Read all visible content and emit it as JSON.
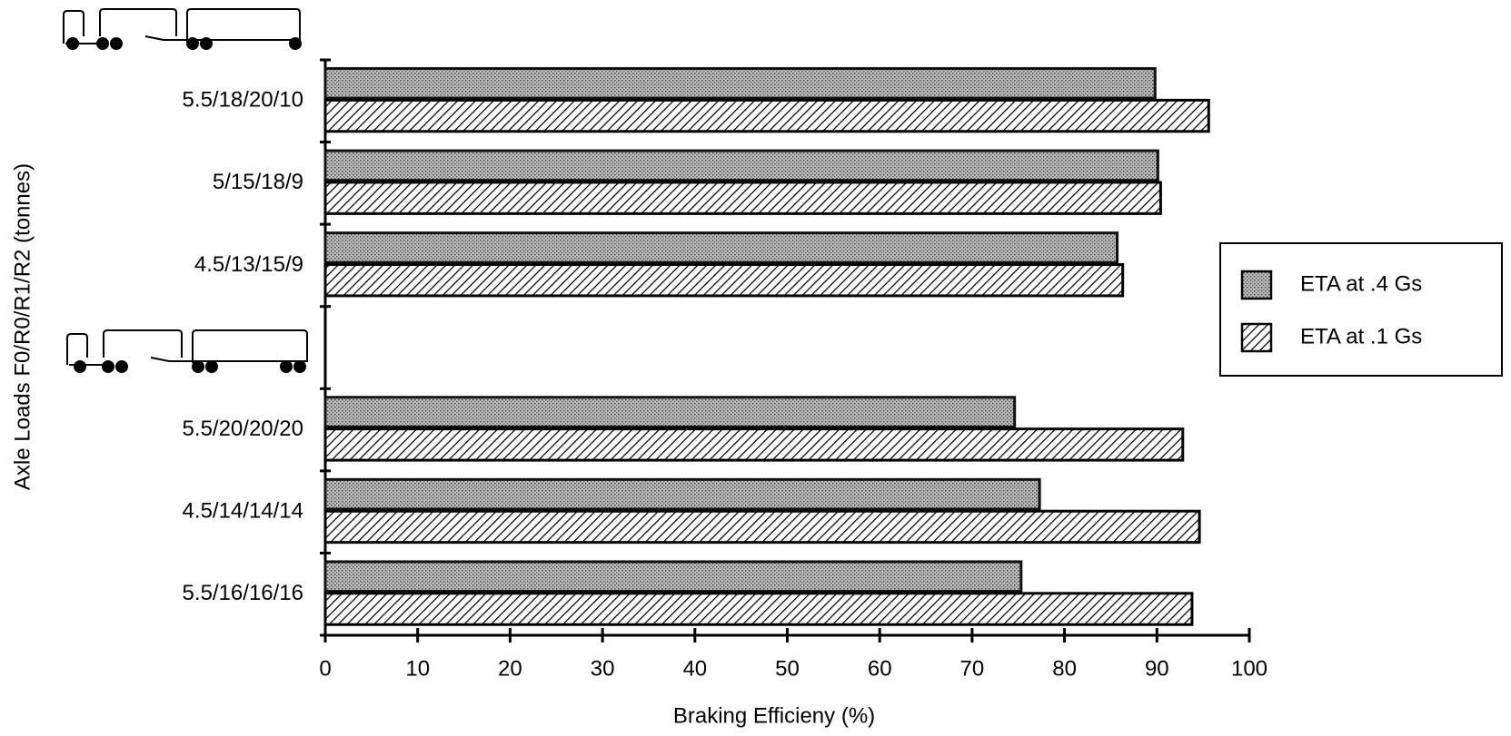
{
  "chart_data": {
    "type": "hbar",
    "xlabel": "Braking Efficieny (%)",
    "ylabel": "Axle Loads F0/R0/R1/R2 (tonnes)",
    "categories": [
      "5.5/18/20/10",
      "5/15/18/9",
      "4.5/13/15/9",
      null,
      "5.5/20/20/20",
      "4.5/14/14/14",
      "5.5/16/16/16"
    ],
    "series": [
      {
        "name": "ETA at .4 Gs",
        "color": "#555555",
        "pattern": "dots",
        "values": [
          89.8,
          90.1,
          85.7,
          null,
          74.6,
          77.3,
          75.3
        ]
      },
      {
        "name": "ETA at .1 Gs",
        "color": "#000000",
        "pattern": "hatch",
        "values": [
          95.6,
          90.4,
          86.3,
          null,
          92.8,
          94.6,
          93.8
        ]
      }
    ],
    "xlim": [
      0,
      100
    ],
    "xticks": [
      0,
      10,
      20,
      30,
      40,
      50,
      60,
      70,
      80,
      90,
      100
    ],
    "legend": "right"
  }
}
